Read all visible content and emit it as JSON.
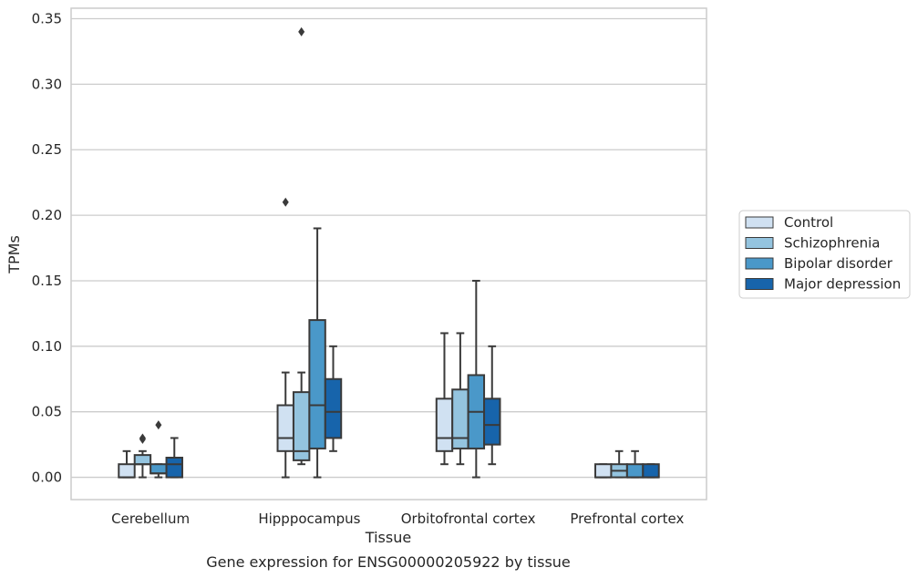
{
  "chart_data": {
    "type": "box",
    "title": "",
    "caption": "Gene expression for ENSG00000205922 by tissue",
    "xlabel": "Tissue",
    "ylabel": "TPMs",
    "ylim": [
      -0.017,
      0.358
    ],
    "yticks": [
      0.0,
      0.05,
      0.1,
      0.15,
      0.2,
      0.25,
      0.3,
      0.35
    ],
    "ytick_labels": [
      "0.00",
      "0.05",
      "0.10",
      "0.15",
      "0.20",
      "0.25",
      "0.30",
      "0.35"
    ],
    "grid": "horizontal",
    "legend_position": "right",
    "categories": [
      "Cerebellum",
      "Hipppocampus",
      "Orbitofrontal cortex",
      "Prefrontal cortex"
    ],
    "series": [
      {
        "name": "Control",
        "color": "#d0e1f2",
        "boxes": [
          {
            "whisker_low": 0.0,
            "q1": 0.0,
            "median": 0.0,
            "q3": 0.01,
            "whisker_high": 0.02,
            "outliers": []
          },
          {
            "whisker_low": 0.0,
            "q1": 0.02,
            "median": 0.03,
            "q3": 0.055,
            "whisker_high": 0.08,
            "outliers": [
              0.21
            ]
          },
          {
            "whisker_low": 0.01,
            "q1": 0.02,
            "median": 0.03,
            "q3": 0.06,
            "whisker_high": 0.11,
            "outliers": []
          },
          {
            "whisker_low": 0.0,
            "q1": 0.0,
            "median": 0.0,
            "q3": 0.01,
            "whisker_high": 0.01,
            "outliers": []
          }
        ]
      },
      {
        "name": "Schizophrenia",
        "color": "#94c4df",
        "boxes": [
          {
            "whisker_low": 0.0,
            "q1": 0.01,
            "median": 0.01,
            "q3": 0.017,
            "whisker_high": 0.02,
            "outliers": [
              0.03,
              0.029
            ]
          },
          {
            "whisker_low": 0.01,
            "q1": 0.013,
            "median": 0.02,
            "q3": 0.065,
            "whisker_high": 0.08,
            "outliers": [
              0.34
            ]
          },
          {
            "whisker_low": 0.01,
            "q1": 0.022,
            "median": 0.03,
            "q3": 0.067,
            "whisker_high": 0.11,
            "outliers": []
          },
          {
            "whisker_low": 0.0,
            "q1": 0.0,
            "median": 0.005,
            "q3": 0.01,
            "whisker_high": 0.02,
            "outliers": []
          }
        ]
      },
      {
        "name": "Bipolar disorder",
        "color": "#4a98c9",
        "boxes": [
          {
            "whisker_low": 0.0,
            "q1": 0.003,
            "median": 0.003,
            "q3": 0.01,
            "whisker_high": 0.01,
            "outliers": [
              0.04
            ]
          },
          {
            "whisker_low": 0.0,
            "q1": 0.022,
            "median": 0.055,
            "q3": 0.12,
            "whisker_high": 0.19,
            "outliers": []
          },
          {
            "whisker_low": 0.0,
            "q1": 0.022,
            "median": 0.05,
            "q3": 0.078,
            "whisker_high": 0.15,
            "outliers": []
          },
          {
            "whisker_low": 0.0,
            "q1": 0.0,
            "median": 0.0,
            "q3": 0.01,
            "whisker_high": 0.02,
            "outliers": []
          }
        ]
      },
      {
        "name": "Major depression",
        "color": "#1764ab",
        "boxes": [
          {
            "whisker_low": 0.0,
            "q1": 0.0,
            "median": 0.01,
            "q3": 0.015,
            "whisker_high": 0.03,
            "outliers": []
          },
          {
            "whisker_low": 0.02,
            "q1": 0.03,
            "median": 0.05,
            "q3": 0.075,
            "whisker_high": 0.1,
            "outliers": []
          },
          {
            "whisker_low": 0.01,
            "q1": 0.025,
            "median": 0.04,
            "q3": 0.06,
            "whisker_high": 0.1,
            "outliers": []
          },
          {
            "whisker_low": 0.0,
            "q1": 0.0,
            "median": 0.0,
            "q3": 0.01,
            "whisker_high": 0.01,
            "outliers": []
          }
        ]
      }
    ]
  },
  "style": {
    "grid_color": "#cccccc",
    "frame_color": "#cccccc",
    "line_color": "#3a3a3a"
  }
}
